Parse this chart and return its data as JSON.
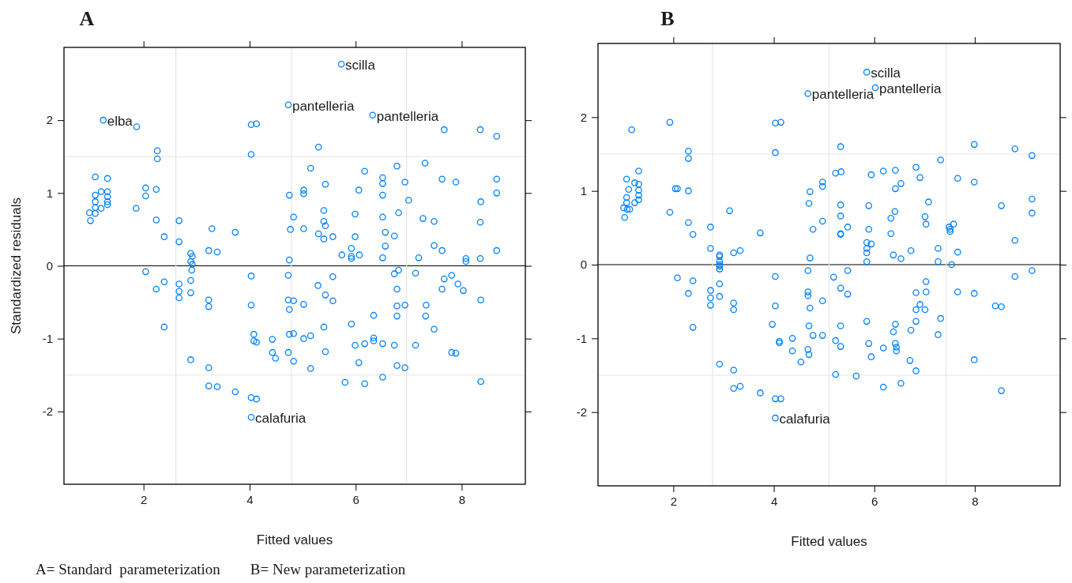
{
  "chart_data": [
    {
      "type": "scatter",
      "title": "A",
      "xlabel": "Fitted values",
      "ylabel": "Standardized residuals",
      "xlim": [
        0.5,
        9.2
      ],
      "ylim": [
        -3,
        3
      ],
      "xticks": [
        2,
        4,
        6,
        8
      ],
      "yticks": [
        -2,
        -1,
        0,
        1,
        2
      ],
      "grid": false,
      "marker": "circle",
      "ref_lines": [
        {
          "axis": "y",
          "value": 0,
          "color": "#000000"
        },
        {
          "axis": "y",
          "value": 1.5,
          "color": "#e6e6e6"
        },
        {
          "axis": "y",
          "value": -1.5,
          "color": "#e6e6e6"
        },
        {
          "axis": "x",
          "value": 2.61,
          "color": "#e6e6e6"
        },
        {
          "axis": "x",
          "value": 4.79,
          "color": "#e6e6e6"
        },
        {
          "axis": "x",
          "value": 6.96,
          "color": "#e6e6e6"
        }
      ],
      "annotations": [
        {
          "text": "elba",
          "x": 1.24,
          "y": 2.0
        },
        {
          "text": "scilla",
          "x": 5.73,
          "y": 2.77
        },
        {
          "text": "pantelleria",
          "x": 4.73,
          "y": 2.21
        },
        {
          "text": "pantelleria",
          "x": 6.32,
          "y": 2.07
        },
        {
          "text": "calafuria",
          "x": 4.03,
          "y": -2.08
        },
        "A= Standard  parameterization        B= New parameterization"
      ],
      "series": [
        {
          "color": "#0080ff",
          "x": [
            1.24,
            1.87,
            2.26,
            2.26,
            1.09,
            1.32,
            2.04,
            2.24,
            1.2,
            1.32,
            2.04,
            1.09,
            1.32,
            1.09,
            1.32,
            1.32,
            1.2,
            1.09,
            1.86,
            0.98,
            1.09,
            1.0,
            2.24,
            2.67,
            2.39,
            2.67,
            2.89,
            2.92,
            2.89,
            2.92,
            2.04,
            2.91,
            2.24,
            2.39,
            2.67,
            2.67,
            2.67,
            2.89,
            2.89,
            2.39,
            2.89,
            5.73,
            4.73,
            4.03,
            4.13,
            4.03,
            5.3,
            5.15,
            5.43,
            6.06,
            4.75,
            5.02,
            5.02,
            5.4,
            5.99,
            4.83,
            5.4,
            5.43,
            4.77,
            5.02,
            3.29,
            3.73,
            5.3,
            5.4,
            5.57,
            5.99,
            3.23,
            3.39,
            4.75,
            5.74,
            5.92,
            5.92,
            5.92,
            6.07,
            4.03,
            4.73,
            5.57,
            5.29,
            5.43,
            5.57,
            3.23,
            3.23,
            4.03,
            4.73,
            4.83,
            4.75,
            5.02,
            5.4,
            5.92,
            4.08,
            4.08,
            4.13,
            4.43,
            4.75,
            4.83,
            5.02,
            5.15,
            5.99,
            6.17,
            4.43,
            4.49,
            4.73,
            4.83,
            5.43,
            6.06,
            5.15,
            3.23,
            3.23,
            3.39,
            3.73,
            4.03,
            4.13,
            5.8,
            6.17,
            4.03,
            6.32,
            7.67,
            8.35,
            8.66,
            6.17,
            6.78,
            7.31,
            6.51,
            6.51,
            6.93,
            7.63,
            7.89,
            8.66,
            8.66,
            6.51,
            7.0,
            8.36,
            6.81,
            6.51,
            7.27,
            7.48,
            8.35,
            6.56,
            6.73,
            6.56,
            7.48,
            7.63,
            8.66,
            6.51,
            7.19,
            8.08,
            8.08,
            8.35,
            6.73,
            6.81,
            7.13,
            7.67,
            7.81,
            7.93,
            8.03,
            7.63,
            6.78,
            6.78,
            6.93,
            7.33,
            8.36,
            6.34,
            6.78,
            7.32,
            7.48,
            6.34,
            6.34,
            6.51,
            6.73,
            7.13,
            7.81,
            7.89,
            6.78,
            6.93,
            6.51,
            8.36
          ],
          "values": [
            2.0,
            1.91,
            1.58,
            1.47,
            1.22,
            1.2,
            1.07,
            1.05,
            1.02,
            1.02,
            0.96,
            0.97,
            0.95,
            0.88,
            0.88,
            0.84,
            0.79,
            0.8,
            0.79,
            0.73,
            0.72,
            0.62,
            0.63,
            0.62,
            0.4,
            0.33,
            0.17,
            0.13,
            0.06,
            0.02,
            -0.08,
            -0.06,
            -0.32,
            -0.22,
            -0.25,
            -0.35,
            -0.44,
            -0.2,
            -0.37,
            -0.84,
            -1.29,
            2.77,
            2.21,
            1.94,
            1.95,
            1.53,
            1.63,
            1.34,
            1.12,
            1.04,
            0.97,
            1.04,
            0.99,
            0.76,
            0.71,
            0.67,
            0.61,
            0.55,
            0.5,
            0.51,
            0.51,
            0.46,
            0.44,
            0.37,
            0.4,
            0.4,
            0.21,
            0.19,
            0.08,
            0.15,
            0.24,
            0.13,
            0.1,
            0.15,
            -0.14,
            -0.13,
            -0.15,
            -0.27,
            -0.4,
            -0.48,
            -0.47,
            -0.56,
            -0.54,
            -0.47,
            -0.48,
            -0.6,
            -0.53,
            -0.84,
            -0.8,
            -0.94,
            -1.03,
            -1.05,
            -1.01,
            -0.94,
            -0.93,
            -1.0,
            -0.96,
            -1.09,
            -1.07,
            -1.19,
            -1.27,
            -1.19,
            -1.31,
            -1.18,
            -1.33,
            -1.41,
            -1.4,
            -1.65,
            -1.66,
            -1.73,
            -1.81,
            -1.83,
            -1.6,
            -1.62,
            -2.08,
            2.07,
            1.87,
            1.87,
            1.78,
            1.3,
            1.37,
            1.41,
            1.21,
            1.13,
            1.15,
            1.19,
            1.15,
            1.19,
            1.0,
            0.97,
            0.9,
            0.88,
            0.73,
            0.67,
            0.65,
            0.61,
            0.6,
            0.46,
            0.41,
            0.27,
            0.28,
            0.21,
            0.21,
            0.11,
            0.11,
            0.1,
            0.06,
            0.1,
            -0.11,
            -0.06,
            -0.1,
            -0.18,
            -0.13,
            -0.25,
            -0.34,
            -0.32,
            -0.32,
            -0.55,
            -0.54,
            -0.54,
            -0.47,
            -0.68,
            -0.69,
            -0.69,
            -0.87,
            -0.99,
            -1.03,
            -1.07,
            -1.09,
            -1.09,
            -1.19,
            -1.2,
            -1.37,
            -1.4,
            -1.53,
            -1.59
          ]
        }
      ]
    },
    {
      "type": "scatter",
      "title": "B",
      "xlabel": "Fitted values",
      "xlim": [
        0.5,
        9.7
      ],
      "ylim": [
        -3,
        3
      ],
      "xticks": [
        2,
        4,
        6,
        8
      ],
      "yticks": [
        -2,
        -1,
        0,
        1,
        2
      ],
      "grid": false,
      "marker": "circle",
      "ref_lines": [
        {
          "axis": "y",
          "value": 0,
          "color": "#000000"
        },
        {
          "axis": "y",
          "value": 1.5,
          "color": "#e6e6e6"
        },
        {
          "axis": "y",
          "value": -1.5,
          "color": "#e6e6e6"
        },
        {
          "axis": "x",
          "value": 2.78,
          "color": "#e6e6e6"
        },
        {
          "axis": "x",
          "value": 5.1,
          "color": "#e6e6e6"
        },
        {
          "axis": "x",
          "value": 7.43,
          "color": "#e6e6e6"
        }
      ],
      "annotations": [
        {
          "text": "scilla",
          "x": 5.85,
          "y": 2.61
        },
        {
          "text": "pantelleria",
          "x": 4.68,
          "y": 2.32
        },
        {
          "text": "pantelleria",
          "x": 6.02,
          "y": 2.4
        },
        {
          "text": "calafuria",
          "x": 4.03,
          "y": -2.08
        }
      ],
      "series": [
        {
          "color": "#0080ff",
          "x": [
            1.17,
            1.93,
            2.3,
            2.3,
            1.31,
            1.07,
            1.23,
            1.31,
            1.11,
            1.31,
            1.31,
            1.31,
            1.07,
            1.07,
            1.23,
            1.01,
            1.08,
            1.13,
            1.03,
            2.04,
            2.08,
            2.3,
            1.93,
            3.12,
            2.3,
            2.39,
            2.74,
            2.74,
            2.92,
            2.92,
            2.92,
            2.92,
            2.92,
            3.2,
            3.33,
            2.92,
            2.92,
            2.92,
            2.08,
            2.39,
            2.3,
            2.74,
            2.74,
            2.74,
            3.2,
            3.2,
            2.39,
            2.92,
            3.2,
            3.2,
            3.33,
            5.85,
            6.02,
            4.68,
            4.03,
            4.14,
            4.03,
            5.33,
            5.23,
            5.34,
            5.94,
            6.18,
            6.42,
            6.53,
            6.42,
            4.97,
            4.97,
            4.72,
            4.7,
            5.33,
            5.89,
            5.33,
            6.41,
            6.33,
            4.97,
            4.78,
            5.89,
            5.47,
            5.33,
            5.33,
            6.33,
            3.73,
            5.85,
            5.94,
            5.85,
            5.85,
            5.85,
            6.38,
            6.53,
            4.72,
            4.03,
            4.68,
            5.19,
            5.47,
            5.33,
            5.47,
            4.68,
            4.68,
            4.72,
            4.97,
            4.03,
            3.97,
            4.7,
            5.33,
            5.85,
            6.42,
            6.38,
            4.11,
            4.11,
            4.37,
            4.78,
            4.97,
            5.23,
            5.33,
            5.89,
            6.18,
            6.42,
            6.44,
            6.44,
            4.68,
            4.7,
            4.37,
            4.54,
            5.94,
            5.23,
            5.64,
            6.18,
            6.53,
            3.73,
            4.03,
            4.14,
            4.03,
            6.83,
            6.91,
            7.32,
            7.66,
            7.99,
            7.99,
            8.8,
            9.14,
            7.08,
            7.01,
            7.03,
            8.53,
            9.14,
            9.14,
            7.49,
            7.51,
            7.51,
            7.58,
            8.8,
            6.73,
            7.27,
            7.66,
            7.27,
            7.54,
            8.8,
            9.14,
            7.03,
            7.03,
            6.83,
            7.66,
            7.99,
            6.91,
            6.83,
            7.01,
            8.41,
            8.53,
            6.83,
            7.32,
            6.73,
            7.27,
            6.71,
            6.83,
            7.99,
            8.53
          ],
          "values": [
            1.83,
            1.93,
            1.54,
            1.44,
            1.27,
            1.16,
            1.11,
            1.09,
            1.02,
            1.01,
            0.94,
            0.88,
            0.91,
            0.84,
            0.84,
            0.77,
            0.75,
            0.75,
            0.64,
            1.03,
            1.03,
            1.0,
            0.71,
            0.73,
            0.57,
            0.41,
            0.51,
            0.22,
            0.13,
            0.11,
            0.04,
            0.0,
            -0.02,
            0.16,
            0.19,
            -0.06,
            -0.26,
            -0.43,
            -0.18,
            -0.22,
            -0.39,
            -0.35,
            -0.45,
            -0.55,
            -0.52,
            -0.61,
            -0.85,
            -1.35,
            -1.43,
            -1.68,
            -1.65,
            2.61,
            2.4,
            2.32,
            1.92,
            1.93,
            1.52,
            1.6,
            1.24,
            1.26,
            1.22,
            1.27,
            1.28,
            1.1,
            1.03,
            1.12,
            1.06,
            0.99,
            0.83,
            0.81,
            0.8,
            0.66,
            0.72,
            0.63,
            0.59,
            0.48,
            0.48,
            0.51,
            0.42,
            0.41,
            0.42,
            0.43,
            0.3,
            0.28,
            0.22,
            0.16,
            0.04,
            0.13,
            0.08,
            0.09,
            -0.16,
            -0.08,
            -0.17,
            -0.08,
            -0.32,
            -0.4,
            -0.37,
            -0.42,
            -0.59,
            -0.49,
            -0.56,
            -0.81,
            -0.83,
            -0.83,
            -0.77,
            -0.81,
            -0.91,
            -1.04,
            -1.06,
            -1.0,
            -0.96,
            -0.96,
            -1.03,
            -1.11,
            -1.07,
            -1.13,
            -1.07,
            -1.12,
            -1.17,
            -1.15,
            -1.22,
            -1.17,
            -1.32,
            -1.25,
            -1.49,
            -1.51,
            -1.66,
            -1.61,
            -1.74,
            -1.82,
            -1.82,
            -2.08,
            1.32,
            1.18,
            1.42,
            1.17,
            1.12,
            1.63,
            1.57,
            1.48,
            0.85,
            0.65,
            0.55,
            0.8,
            0.89,
            0.7,
            0.51,
            0.48,
            0.45,
            0.55,
            0.33,
            0.19,
            0.22,
            0.17,
            0.04,
            0.0,
            -0.16,
            -0.08,
            -0.23,
            -0.37,
            -0.38,
            -0.37,
            -0.39,
            -0.54,
            -0.61,
            -0.61,
            -0.56,
            -0.57,
            -0.77,
            -0.73,
            -0.89,
            -0.95,
            -1.3,
            -1.44,
            -1.29,
            -1.71
          ]
        }
      ]
    }
  ]
}
